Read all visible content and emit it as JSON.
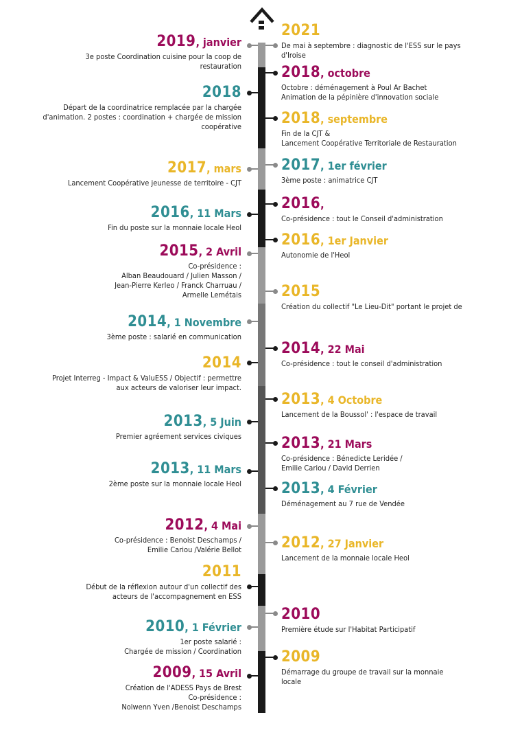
{
  "colors": {
    "magenta": "#9c0b5a",
    "teal": "#2f8e93",
    "gold": "#e9b628",
    "bar_dark": "#1a1a1a",
    "bar_mid": "#555555",
    "bar_light": "#9a9a9a",
    "bar_gray": "#777777"
  },
  "top_icon": "house-arrow-icon",
  "events": [
    {
      "side": "right",
      "year": "2021",
      "date": "",
      "color": "gold",
      "desc": [
        "De mai à septembre : diagnostic de l'ESS sur le pays",
        "d'Iroise"
      ]
    },
    {
      "side": "left",
      "year": "2019",
      "date": ", janvier",
      "color": "magenta",
      "desc": [
        "3e poste Coordination cuisine pour la coop de",
        "restauration"
      ]
    },
    {
      "side": "right",
      "year": "2018",
      "date": ", octobre",
      "color": "magenta",
      "desc": [
        "Octobre : déménagement à Poul Ar Bachet",
        "Animation de la pépinière d'innovation sociale"
      ]
    },
    {
      "side": "left",
      "year": "2018",
      "date": "",
      "color": "teal",
      "desc": [
        "Départ de la coordinatrice remplacée par la chargée",
        "d'animation. 2 postes : coordination + chargée de mission",
        "coopérative"
      ]
    },
    {
      "side": "right",
      "year": "2018",
      "date": ", septembre",
      "color": "gold",
      "desc": [
        "Fin de la CJT &",
        "Lancement Coopérative Territoriale de Restauration"
      ]
    },
    {
      "side": "left",
      "year": "2017",
      "date": ", mars",
      "color": "gold",
      "desc": [
        "Lancement Coopérative jeunesse de territoire - CJT"
      ]
    },
    {
      "side": "right",
      "year": "2017",
      "date": ", 1er février",
      "color": "teal",
      "desc": [
        "3ème poste : animatrice CJT"
      ]
    },
    {
      "side": "left",
      "year": "2016",
      "date": ", 11 Mars",
      "color": "teal",
      "desc": [
        "Fin du poste sur la monnaie locale Heol"
      ]
    },
    {
      "side": "right",
      "year": "2016",
      "date": ",",
      "color": "magenta",
      "desc": [
        "Co-présidence : tout le Conseil d'administration"
      ]
    },
    {
      "side": "right",
      "year": "2016",
      "date": ", 1er Janvier",
      "color": "gold",
      "desc": [
        "Autonomie de l'Heol"
      ]
    },
    {
      "side": "left",
      "year": "2015",
      "date": ", 2 Avril",
      "color": "magenta",
      "desc": [
        "Co-présidence :",
        "Alban Beaudouard / Julien Masson /",
        "Jean-Pierre Kerleo / Franck Charruau /",
        "Armelle Lemétais"
      ]
    },
    {
      "side": "right",
      "year": "2015",
      "date": "",
      "color": "gold",
      "desc": [
        "Création du collectif \"Le Lieu-Dit\"  portant le projet de"
      ]
    },
    {
      "side": "left",
      "year": "2014",
      "date": ", 1 Novembre",
      "color": "teal",
      "desc": [
        "3ème poste : salarié en communication"
      ]
    },
    {
      "side": "right",
      "year": "2014",
      "date": ", 22 Mai",
      "color": "magenta",
      "desc": [
        "Co-présidence : tout le conseil d'administration"
      ]
    },
    {
      "side": "left",
      "year": "2014",
      "date": "",
      "color": "gold",
      "desc": [
        "Projet Interreg - Impact & ValuESS / Objectif  : permettre",
        "aux acteurs de valoriser leur impact."
      ]
    },
    {
      "side": "right",
      "year": "2013",
      "date": ", 4 Octobre",
      "color": "gold",
      "desc": [
        "Lancement de la Boussol' : l'espace de travail"
      ]
    },
    {
      "side": "left",
      "year": "2013",
      "date": ", 5 Juin",
      "color": "teal",
      "desc": [
        "Premier agréement services civiques"
      ]
    },
    {
      "side": "right",
      "year": "2013",
      "date": ", 21 Mars",
      "color": "magenta",
      "desc": [
        "Co-présidence : Bénedicte Leridée /",
        "Emilie Cariou / David Derrien"
      ]
    },
    {
      "side": "left",
      "year": "2013",
      "date": ", 11 Mars",
      "color": "teal",
      "desc": [
        "2ème poste sur la monnaie locale Heol"
      ]
    },
    {
      "side": "right",
      "year": "2013",
      "date": ", 4 Février",
      "color": "teal",
      "desc": [
        "Déménagement au 7 rue de Vendée"
      ]
    },
    {
      "side": "left",
      "year": "2012",
      "date": ", 4 Mai",
      "color": "magenta",
      "desc": [
        "Co-présidence : Benoist Deschamps /",
        "Emilie Cariou /Valérie Bellot"
      ]
    },
    {
      "side": "right",
      "year": "2012",
      "date": ", 27 Janvier",
      "color": "gold",
      "desc": [
        "Lancement de la monnaie locale Heol"
      ]
    },
    {
      "side": "left",
      "year": "2011",
      "date": "",
      "color": "gold",
      "desc": [
        "Début de la réflexion autour d'un collectif des",
        "acteurs de l'accompagnement en ESS"
      ]
    },
    {
      "side": "right",
      "year": "2010",
      "date": "",
      "color": "magenta",
      "desc": [
        "Première étude sur l'Habitat Participatif"
      ]
    },
    {
      "side": "left",
      "year": "2010",
      "date": ", 1 Février",
      "color": "teal",
      "desc": [
        "1er poste salarié  :",
        "Chargée de mission / Coordination"
      ]
    },
    {
      "side": "right",
      "year": "2009",
      "date": "",
      "color": "gold",
      "desc": [
        "Démarrage du groupe de travail sur la monnaie",
        "locale"
      ]
    },
    {
      "side": "left",
      "year": "2009",
      "date": ", 15 Avril",
      "color": "magenta",
      "desc": [
        "Création de l'ADESS Pays de Brest",
        "Co-présidence :",
        "Nolwenn Yven /Benoist Deschamps"
      ]
    }
  ]
}
